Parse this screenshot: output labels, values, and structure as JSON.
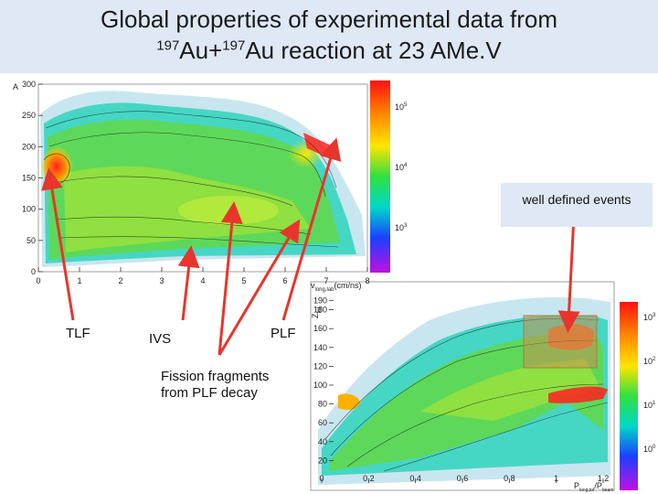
{
  "title": {
    "line1": "Global properties of experimental data from",
    "sup1": "197",
    "part1": "Au+",
    "sup2": "197",
    "part2": "Au reaction at 23 AMe.V"
  },
  "labels": {
    "tlf": "TLF",
    "ivs": "IVS",
    "plf": "PLF",
    "fission": "Fission fragments\nfrom PLF decay",
    "well_defined": "well defined events"
  },
  "colors": {
    "arrow": "#e8352b",
    "box_fill": "#dfe8f5"
  },
  "chart_data": [
    {
      "type": "heatmap",
      "title": "",
      "ylabel": "A",
      "xlabel": "v_long,lab (cm/ns)",
      "xlabel_main": "v",
      "xlabel_sub": "long,lab",
      "xlabel_unit": "(cm/ns)",
      "xlim": [
        0,
        8
      ],
      "ylim": [
        0,
        300
      ],
      "xticks": [
        "0",
        "1",
        "2",
        "3",
        "4",
        "5",
        "6",
        "7",
        "8"
      ],
      "yticks": [
        "0",
        "50",
        "100",
        "150",
        "200",
        "250",
        "300"
      ],
      "colorbar": {
        "scale": "log",
        "labels": [
          {
            "base": "10",
            "exp": "5"
          },
          {
            "base": "10",
            "exp": "4"
          },
          {
            "base": "10",
            "exp": "3"
          }
        ]
      }
    },
    {
      "type": "heatmap",
      "title": "",
      "ylabel": "Z_tot",
      "ylabel_main": "Z",
      "ylabel_sub": "tot",
      "xlabel": "P_long,tot/P_beam",
      "xlabel_main": "P",
      "xlabel_sub": "long,tot",
      "xlabel_unit": "/P",
      "xlabel_unit_sub": "beam",
      "xlim": [
        0,
        1.2
      ],
      "ylim": [
        0,
        200
      ],
      "xticks": [
        "0",
        "0.2",
        "0.4",
        "0.6",
        "0.8",
        "1",
        "1.2"
      ],
      "yticks": [
        "20",
        "40",
        "60",
        "80",
        "100",
        "120",
        "140",
        "160",
        "180",
        "190"
      ],
      "colorbar": {
        "scale": "log",
        "labels": [
          {
            "base": "10",
            "exp": "3"
          },
          {
            "base": "10",
            "exp": "2"
          },
          {
            "base": "10",
            "exp": "1"
          },
          {
            "base": "10",
            "exp": "0"
          }
        ]
      },
      "annotation": "well defined events"
    }
  ]
}
